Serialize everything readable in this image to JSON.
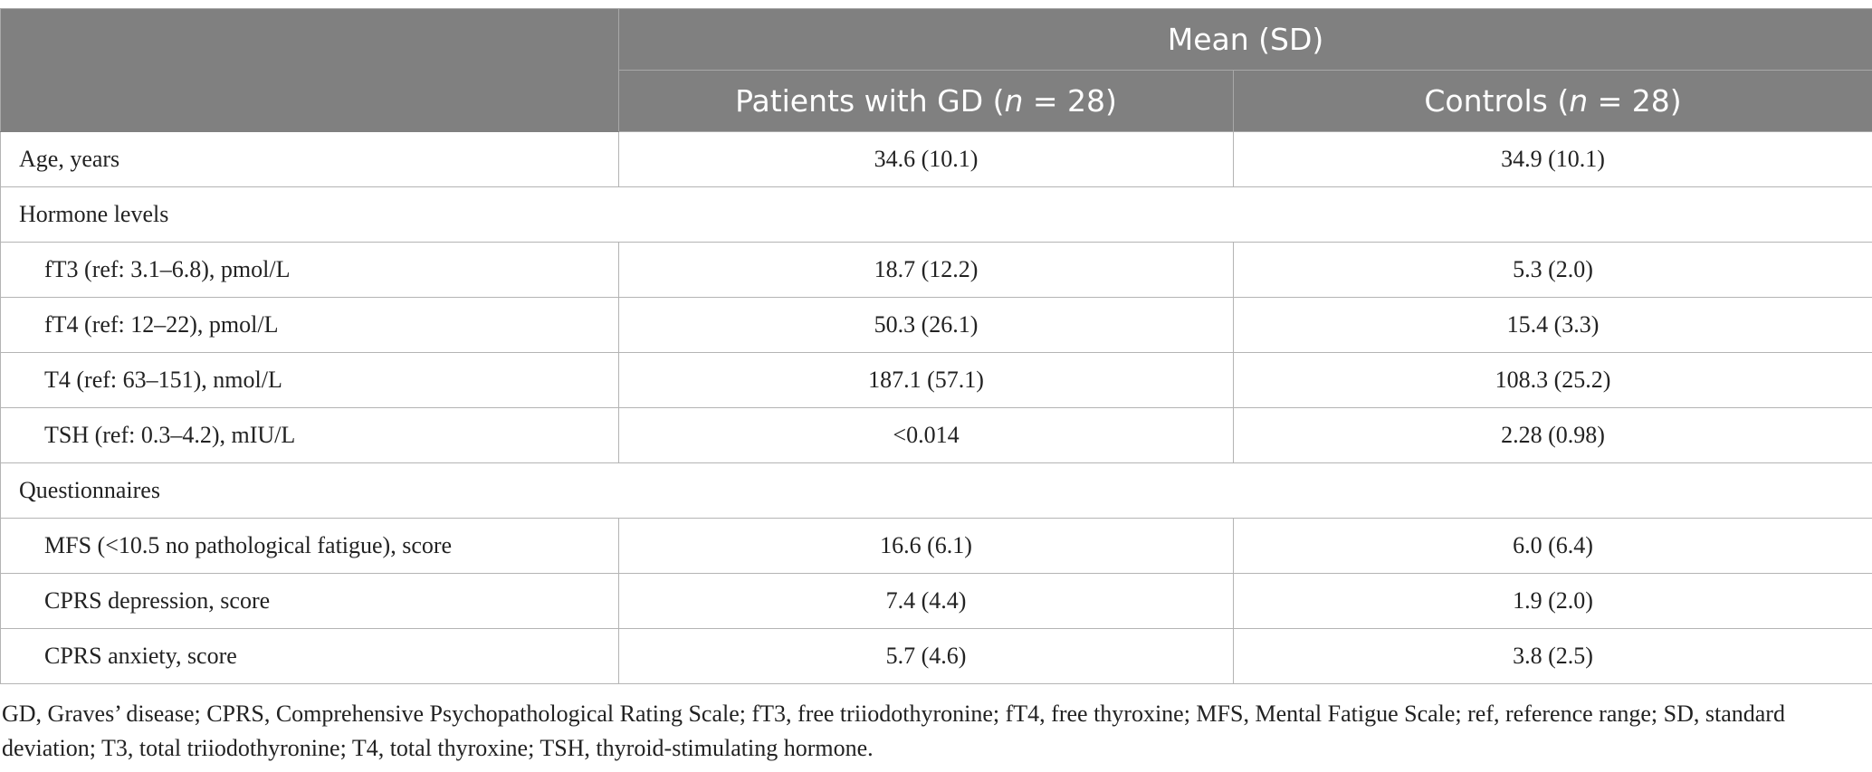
{
  "table": {
    "header": {
      "group": "Mean (SD)",
      "columns": [
        {
          "before": "Patients with GD (",
          "italic": "n",
          "after": " = 28)"
        },
        {
          "before": "Controls (",
          "italic": "n",
          "after": " = 28)"
        }
      ]
    },
    "body": [
      {
        "row": [
          "Age, years",
          "34.6 (10.1)",
          "34.9 (10.1)"
        ]
      },
      {
        "section": "Hormone levels",
        "rows": [
          [
            "fT3 (ref: 3.1–6.8), pmol/L",
            "18.7 (12.2)",
            "5.3 (2.0)"
          ],
          [
            "fT4 (ref: 12–22), pmol/L",
            "50.3 (26.1)",
            "15.4 (3.3)"
          ],
          [
            "T4 (ref: 63–151), nmol/L",
            "187.1 (57.1)",
            "108.3 (25.2)"
          ],
          [
            "TSH (ref: 0.3–4.2), mIU/L",
            "<0.014",
            "2.28 (0.98)"
          ]
        ]
      },
      {
        "section": "Questionnaires",
        "rows": [
          [
            "MFS (<10.5 no pathological fatigue), score",
            "16.6 (6.1)",
            "6.0 (6.4)"
          ],
          [
            "CPRS depression, score",
            "7.4 (4.4)",
            "1.9 (2.0)"
          ],
          [
            "CPRS anxiety, score",
            "5.7 (4.6)",
            "3.8 (2.5)"
          ]
        ]
      }
    ]
  },
  "footnote": "GD, Graves’ disease; CPRS, Comprehensive Psychopathological Rating Scale; fT3, free triiodothyronine; fT4, free thyroxine; MFS, Mental Fatigue Scale; ref, reference range; SD, standard deviation; T3, total triiodothyronine; T4, total thyroxine; TSH, thyroid-stimulating hormone."
}
